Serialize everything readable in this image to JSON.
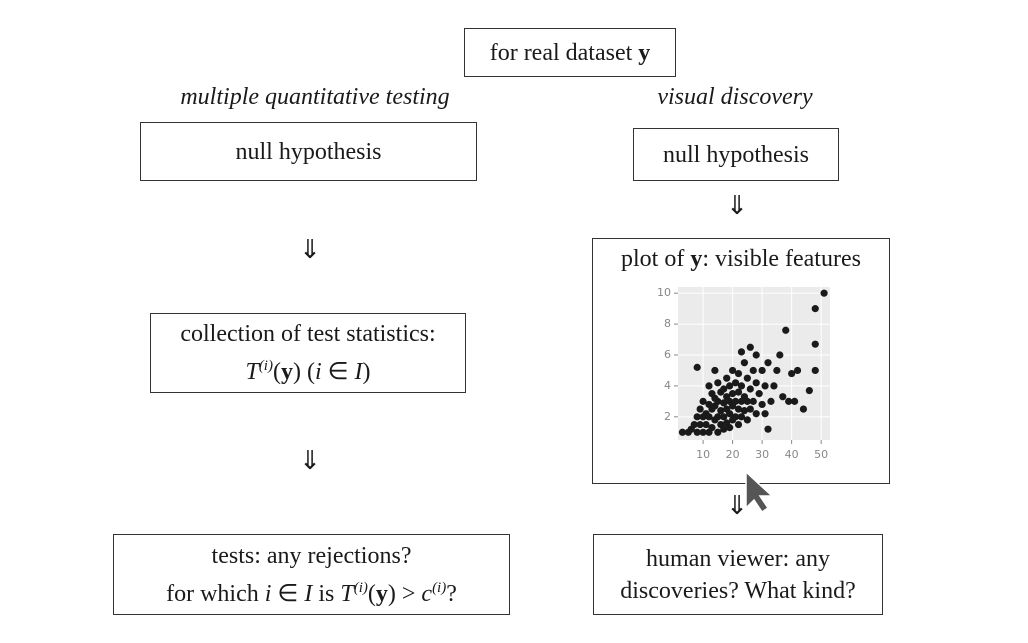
{
  "header": {
    "runs": [
      {
        "text": "for real dataset "
      },
      {
        "text": "y",
        "style": "b"
      }
    ]
  },
  "left": {
    "heading": "multiple quantitative testing",
    "box1": "null hypothesis",
    "box2": {
      "line1": "collection of test statistics:",
      "line2": [
        {
          "text": "T",
          "style": "i"
        },
        {
          "text": "(i)",
          "style": "sup"
        },
        {
          "text": "("
        },
        {
          "text": "y",
          "style": "b"
        },
        {
          "text": ") ("
        },
        {
          "text": "i",
          "style": "i"
        },
        {
          "text": " ∈ "
        },
        {
          "text": "I",
          "style": "i"
        },
        {
          "text": ")"
        }
      ]
    },
    "box3": {
      "line1": "tests: any rejections?",
      "line2": [
        {
          "text": "for which "
        },
        {
          "text": "i",
          "style": "i"
        },
        {
          "text": " ∈ "
        },
        {
          "text": "I",
          "style": "i"
        },
        {
          "text": " is "
        },
        {
          "text": "T",
          "style": "i"
        },
        {
          "text": "(i)",
          "style": "sup"
        },
        {
          "text": "("
        },
        {
          "text": "y",
          "style": "b"
        },
        {
          "text": ") > "
        },
        {
          "text": "c",
          "style": "i"
        },
        {
          "text": "(i)",
          "style": "sup"
        },
        {
          "text": "?"
        }
      ]
    }
  },
  "right": {
    "heading": "visual discovery",
    "box1": "null hypothesis",
    "plot_title": [
      {
        "text": "plot of "
      },
      {
        "text": "y",
        "style": "b"
      },
      {
        "text": ": visible features"
      }
    ],
    "box3": {
      "line1": "human viewer: any",
      "line2": "discoveries? What kind?"
    }
  },
  "plot": {
    "type": "scatter",
    "color": "#1a1a1a",
    "grid": true,
    "xlim": [
      1.5,
      53
    ],
    "ylim": [
      0.5,
      10.4
    ],
    "xticks": [
      10,
      20,
      30,
      40,
      50
    ],
    "yticks": [
      2,
      4,
      6,
      8,
      10
    ],
    "x": [
      3,
      5,
      6,
      7,
      8,
      8,
      9,
      9,
      10,
      10,
      10,
      11,
      11,
      12,
      12,
      12,
      12,
      13,
      13,
      13,
      14,
      14,
      14,
      15,
      15,
      15,
      15,
      16,
      16,
      16,
      17,
      17,
      17,
      17,
      18,
      18,
      18,
      18,
      19,
      19,
      19,
      19,
      20,
      20,
      20,
      20,
      21,
      21,
      21,
      22,
      22,
      22,
      22,
      23,
      23,
      23,
      24,
      24,
      24,
      25,
      25,
      25,
      26,
      26,
      26,
      27,
      27,
      28,
      28,
      28,
      29,
      30,
      30,
      31,
      31,
      32,
      32,
      33,
      34,
      35,
      36,
      37,
      38,
      39,
      40,
      41,
      42,
      44,
      46,
      48,
      48,
      48,
      51,
      8,
      14,
      23
    ],
    "y": [
      1,
      1,
      1.2,
      1.5,
      1,
      2,
      1.5,
      2.5,
      1,
      2,
      3,
      1.5,
      2.2,
      1,
      2,
      2.8,
      4,
      1.3,
      2.5,
      3.5,
      1.8,
      2.7,
      3.2,
      1,
      2,
      3,
      4.2,
      1.5,
      2.4,
      3.6,
      1.2,
      2,
      2.9,
      3.8,
      1.6,
      2.5,
      3.3,
      4.5,
      1.3,
      2.2,
      3,
      4,
      1.8,
      2.7,
      3.5,
      5,
      2,
      3,
      4.2,
      1.5,
      2.5,
      3.6,
      4.8,
      2,
      3,
      4,
      2.4,
      3.3,
      5.5,
      1.8,
      3,
      4.5,
      2.5,
      3.8,
      6.5,
      3,
      5,
      2.2,
      4.2,
      6,
      3.5,
      5,
      2.8,
      2.2,
      4,
      1.2,
      5.5,
      3,
      4,
      5,
      6,
      3.3,
      7.6,
      3,
      4.8,
      3,
      5,
      2.5,
      3.7,
      5,
      6.7,
      9,
      10,
      5.2,
      5,
      6.2
    ]
  }
}
